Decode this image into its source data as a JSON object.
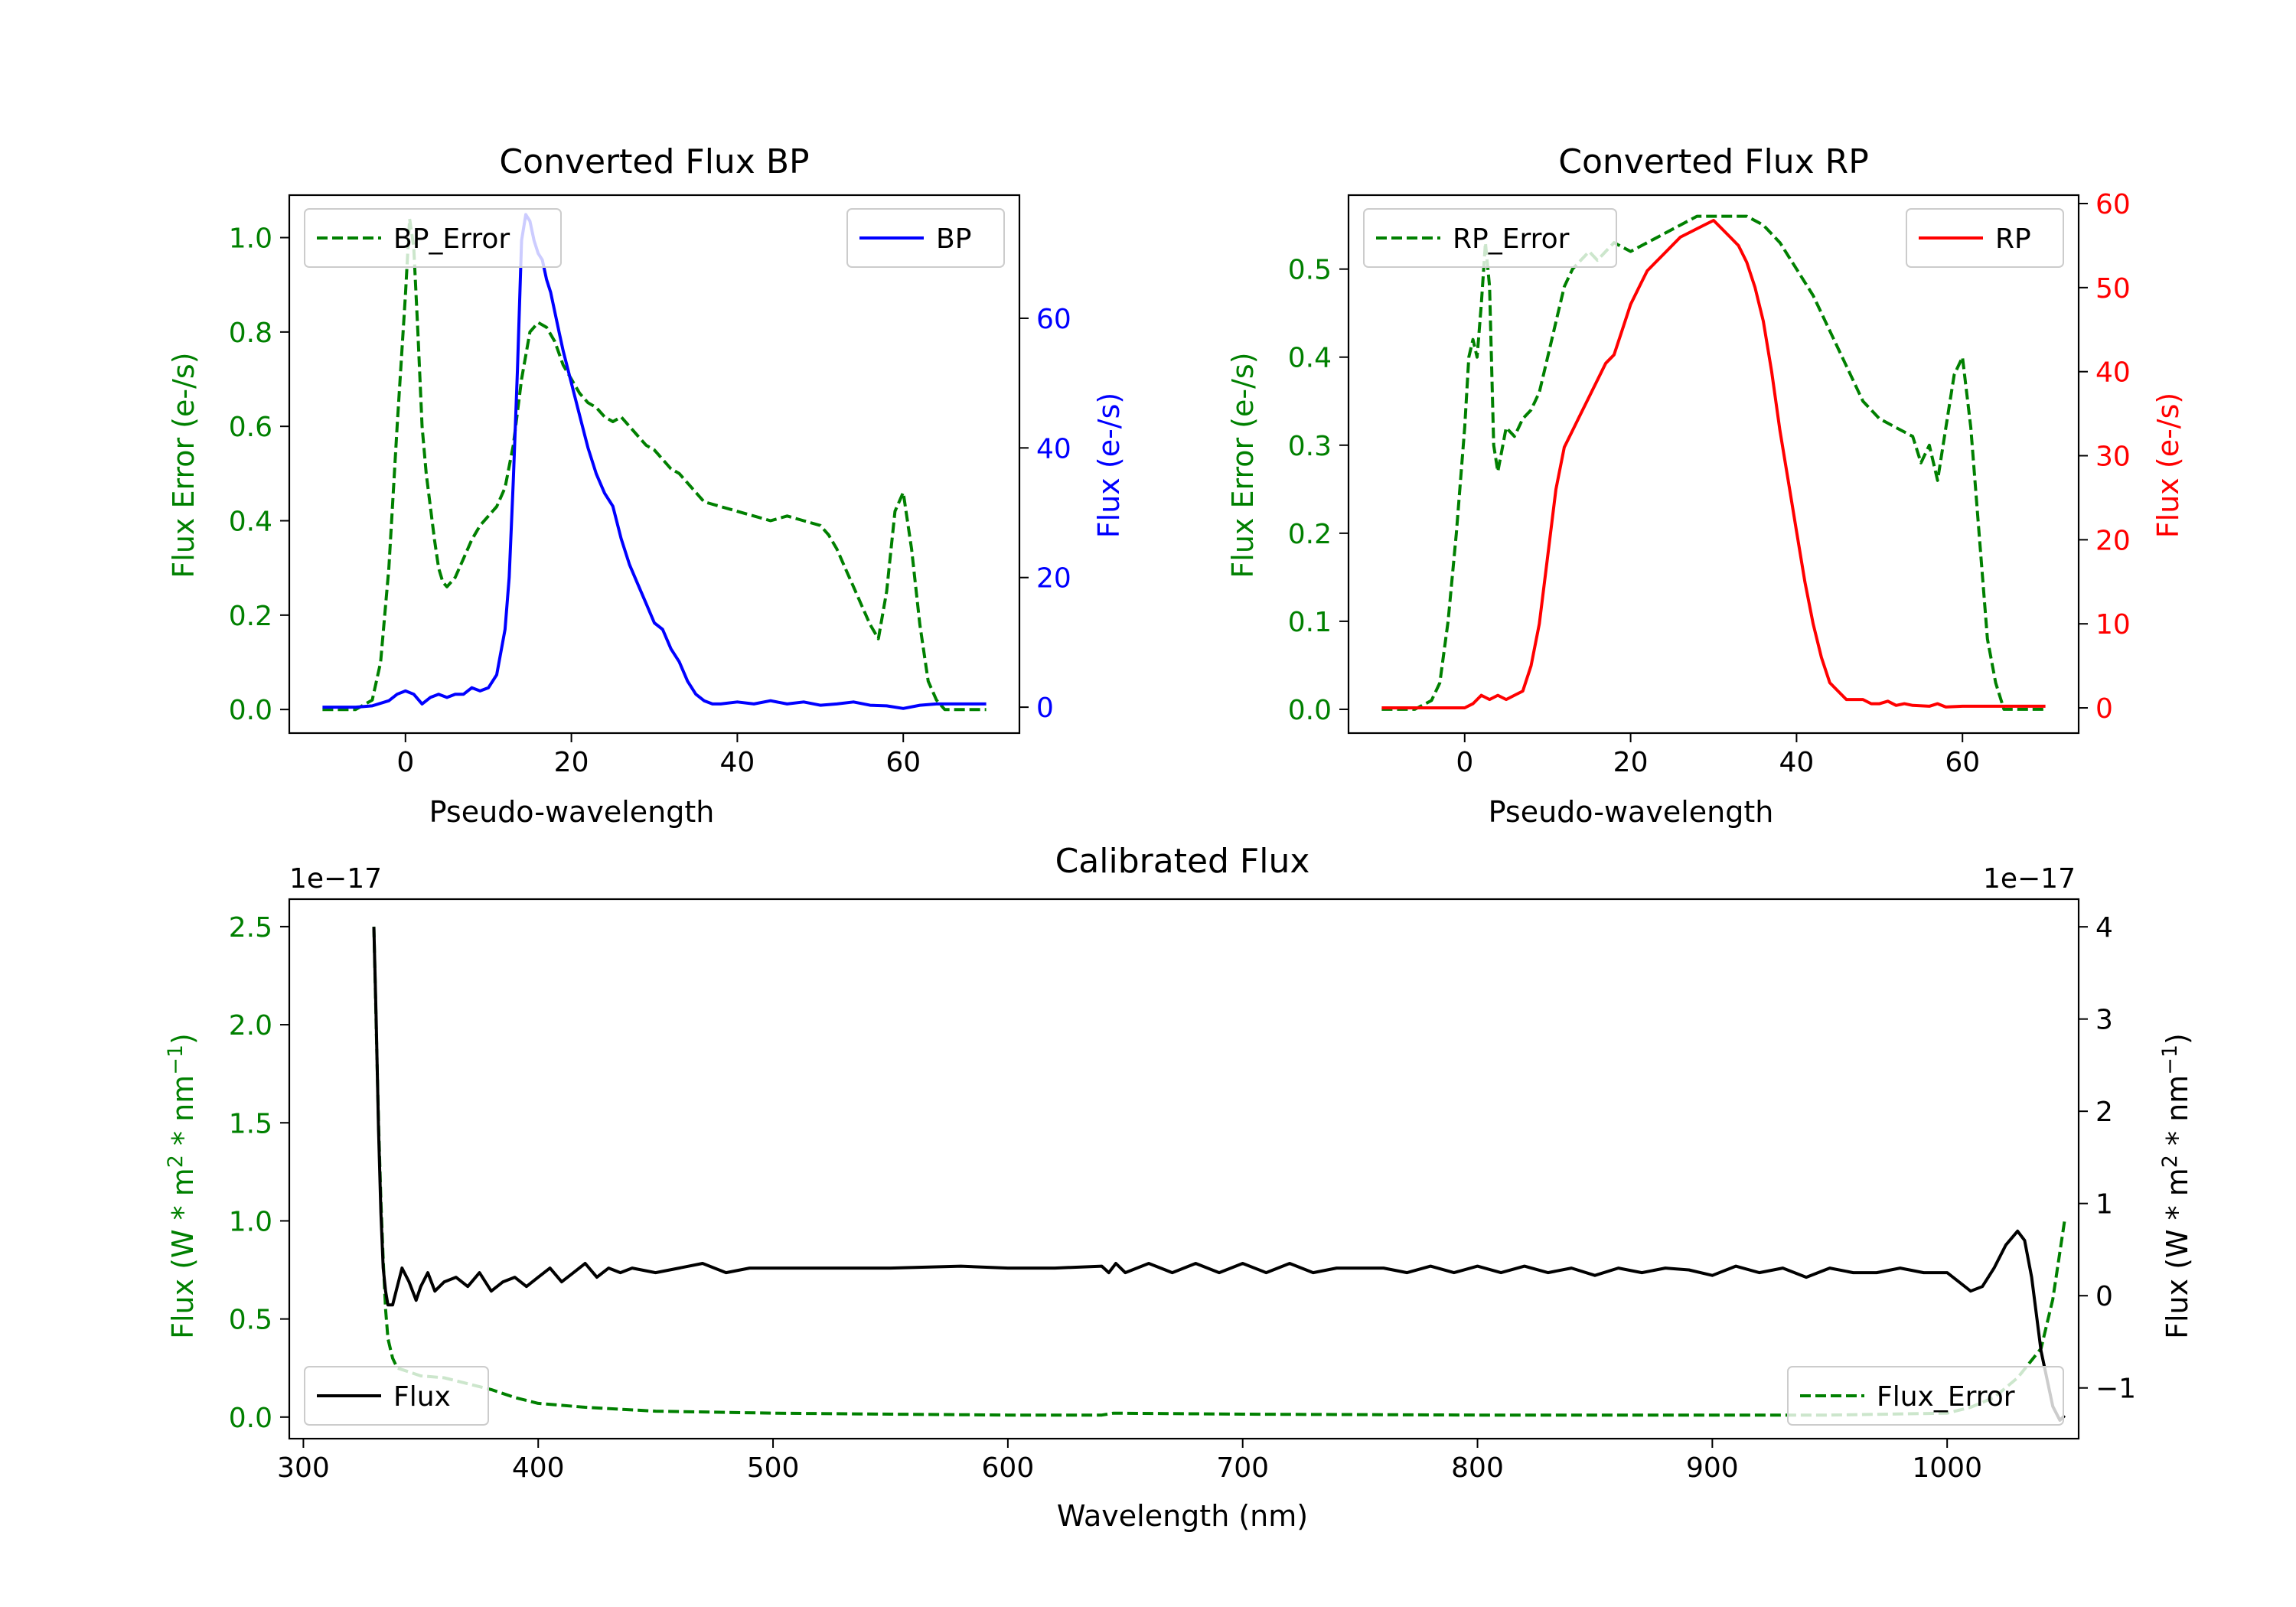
{
  "colors": {
    "error": "#008000",
    "bp": "#0000ff",
    "rp": "#ff0000",
    "flux": "#000000"
  },
  "chart_data": [
    {
      "id": "bp",
      "type": "line",
      "title": "Converted Flux BP",
      "xlabel": "Pseudo-wavelength",
      "ylabel_left": "Flux Error (e-/s)",
      "ylabel_right": "Flux (e-/s)",
      "xlim": [
        -14,
        74
      ],
      "ylim_left": [
        -0.05,
        1.09
      ],
      "ylim_right": [
        -4,
        79
      ],
      "xticks": [
        0,
        20,
        40,
        60
      ],
      "yticks_left": [
        0.0,
        0.2,
        0.4,
        0.6,
        0.8,
        1.0
      ],
      "yticks_right": [
        0,
        20,
        40,
        60
      ],
      "legend_left": {
        "label": "BP_Error",
        "placement": "upper left"
      },
      "legend_right": {
        "label": "BP",
        "placement": "upper right"
      },
      "series": [
        {
          "name": "BP_Error",
          "axis": "left",
          "style": "dashed",
          "color_key": "error",
          "x": [
            -10,
            -6,
            -4,
            -3,
            -2,
            -1,
            0,
            0.5,
            1,
            1.5,
            2,
            2.5,
            3,
            3.5,
            4,
            4.5,
            5,
            5.5,
            6,
            7,
            8,
            9,
            10,
            11,
            12,
            13,
            14,
            15,
            16,
            17,
            18,
            19,
            20,
            21,
            22,
            23,
            24,
            25,
            26,
            27,
            28,
            29,
            30,
            31,
            32,
            33,
            34,
            35,
            36,
            38,
            40,
            42,
            44,
            46,
            48,
            50,
            51,
            52,
            53,
            54,
            55,
            56,
            57,
            58,
            59,
            60,
            61,
            62,
            63,
            64,
            65,
            66,
            68,
            70
          ],
          "y": [
            0.0,
            0.0,
            0.02,
            0.1,
            0.3,
            0.6,
            0.88,
            1.04,
            0.98,
            0.8,
            0.6,
            0.5,
            0.43,
            0.36,
            0.3,
            0.27,
            0.26,
            0.27,
            0.28,
            0.32,
            0.36,
            0.39,
            0.41,
            0.43,
            0.47,
            0.56,
            0.7,
            0.8,
            0.82,
            0.81,
            0.78,
            0.73,
            0.7,
            0.67,
            0.65,
            0.64,
            0.62,
            0.61,
            0.62,
            0.6,
            0.58,
            0.56,
            0.55,
            0.53,
            0.51,
            0.5,
            0.48,
            0.46,
            0.44,
            0.43,
            0.42,
            0.41,
            0.4,
            0.41,
            0.4,
            0.39,
            0.37,
            0.34,
            0.3,
            0.26,
            0.22,
            0.18,
            0.15,
            0.25,
            0.42,
            0.46,
            0.34,
            0.18,
            0.06,
            0.02,
            0.0,
            0.0,
            0.0,
            0.0
          ]
        },
        {
          "name": "BP",
          "axis": "right",
          "style": "solid",
          "color_key": "bp",
          "x": [
            -10,
            -6,
            -4,
            -2,
            -1,
            0,
            1,
            2,
            3,
            4,
            5,
            6,
            7,
            8,
            9,
            10,
            11,
            12,
            12.5,
            13,
            13.5,
            14,
            14.5,
            15,
            15.5,
            16,
            16.5,
            17,
            17.5,
            18,
            18.5,
            19,
            20,
            21,
            22,
            23,
            24,
            25,
            26,
            27,
            28,
            29,
            30,
            31,
            32,
            33,
            34,
            35,
            36,
            37,
            38,
            40,
            42,
            44,
            46,
            48,
            50,
            52,
            54,
            56,
            58,
            60,
            62,
            64,
            66,
            68,
            70
          ],
          "y": [
            0,
            0,
            0.2,
            1,
            2,
            2.5,
            2,
            0.5,
            1.5,
            2,
            1.5,
            2,
            2,
            3,
            2.5,
            3,
            5,
            12,
            20,
            35,
            52,
            72,
            76,
            75,
            72,
            70,
            69,
            66,
            64,
            61,
            58,
            55,
            50,
            45,
            40,
            36,
            33,
            31,
            26,
            22,
            19,
            16,
            13,
            12,
            9,
            7,
            4,
            2,
            1,
            0.5,
            0.5,
            0.8,
            0.5,
            1,
            0.5,
            0.8,
            0.3,
            0.5,
            0.8,
            0.3,
            0.2,
            -0.2,
            0.3,
            0.5,
            0.5,
            0.5,
            0.5
          ]
        }
      ]
    },
    {
      "id": "rp",
      "type": "line",
      "title": "Converted Flux RP",
      "xlabel": "Pseudo-wavelength",
      "ylabel_left": "Flux Error (e-/s)",
      "ylabel_right": "Flux (e-/s)",
      "xlim": [
        -14,
        74
      ],
      "ylim_left": [
        -0.027,
        0.584
      ],
      "ylim_right": [
        -3,
        61
      ],
      "xticks": [
        0,
        20,
        40,
        60
      ],
      "yticks_left": [
        0.0,
        0.1,
        0.2,
        0.3,
        0.4,
        0.5
      ],
      "yticks_right": [
        0,
        10,
        20,
        30,
        40,
        50,
        60
      ],
      "legend_left": {
        "label": "RP_Error",
        "placement": "upper left"
      },
      "legend_right": {
        "label": "RP",
        "placement": "upper right"
      },
      "series": [
        {
          "name": "RP_Error",
          "axis": "left",
          "style": "dashed",
          "color_key": "error",
          "x": [
            -10,
            -6,
            -4,
            -3,
            -2,
            -1,
            0,
            0.5,
            1,
            1.5,
            2,
            2.5,
            3,
            3.5,
            4,
            5,
            6,
            7,
            8,
            9,
            10,
            11,
            12,
            13,
            14,
            15,
            16,
            18,
            20,
            22,
            24,
            26,
            28,
            30,
            32,
            34,
            36,
            38,
            40,
            42,
            44,
            46,
            48,
            50,
            52,
            54,
            55,
            56,
            57,
            58,
            59,
            60,
            61,
            62,
            63,
            64,
            65,
            66,
            68,
            70
          ],
          "y": [
            0.0,
            0.0,
            0.01,
            0.03,
            0.1,
            0.2,
            0.32,
            0.4,
            0.42,
            0.4,
            0.46,
            0.53,
            0.48,
            0.3,
            0.27,
            0.32,
            0.31,
            0.33,
            0.34,
            0.36,
            0.4,
            0.44,
            0.48,
            0.5,
            0.51,
            0.52,
            0.51,
            0.53,
            0.52,
            0.53,
            0.54,
            0.55,
            0.56,
            0.56,
            0.56,
            0.56,
            0.55,
            0.53,
            0.5,
            0.47,
            0.43,
            0.39,
            0.35,
            0.33,
            0.32,
            0.31,
            0.28,
            0.3,
            0.26,
            0.32,
            0.38,
            0.4,
            0.32,
            0.2,
            0.08,
            0.03,
            0.0,
            0.0,
            0.0,
            0.0
          ]
        },
        {
          "name": "RP",
          "axis": "right",
          "style": "solid",
          "color_key": "rp",
          "x": [
            -10,
            -6,
            -4,
            -2,
            0,
            1,
            2,
            3,
            4,
            5,
            6,
            7,
            8,
            9,
            10,
            11,
            12,
            13,
            14,
            15,
            16,
            17,
            18,
            19,
            20,
            21,
            22,
            23,
            24,
            25,
            26,
            27,
            28,
            29,
            30,
            31,
            32,
            33,
            34,
            35,
            36,
            37,
            38,
            39,
            40,
            41,
            42,
            43,
            44,
            45,
            46,
            47,
            48,
            49,
            50,
            51,
            52,
            53,
            54,
            56,
            57,
            58,
            60,
            64,
            70
          ],
          "y": [
            0,
            0,
            0,
            0,
            0,
            0.5,
            1.5,
            1,
            1.5,
            1,
            1.5,
            2,
            5,
            10,
            18,
            26,
            31,
            33,
            35,
            37,
            39,
            41,
            42,
            45,
            48,
            50,
            52,
            53,
            54,
            55,
            56,
            56.5,
            57,
            57.5,
            58,
            57,
            56,
            55,
            53,
            50,
            46,
            40,
            33,
            27,
            21,
            15,
            10,
            6,
            3,
            2,
            1,
            1,
            1,
            0.5,
            0.5,
            0.8,
            0.3,
            0.5,
            0.3,
            0.2,
            0.5,
            0.1,
            0.2,
            0.2,
            0.2
          ]
        }
      ]
    },
    {
      "id": "cal",
      "type": "line",
      "title": "Calibrated Flux",
      "xlabel": "Wavelength (nm)",
      "ylabel_left": "Flux (W * m",
      "ylabel_right": "Flux (W * m",
      "ylabel_sup1": "2",
      "ylabel_mid": " * nm",
      "ylabel_sup2": "−1",
      "ylabel_end": ")",
      "offset_left": "1e−17",
      "offset_right": "1e−17",
      "xlim": [
        294,
        1056
      ],
      "ylim_left": [
        -0.11,
        2.64
      ],
      "ylim_right": [
        -1.55,
        4.3
      ],
      "xticks": [
        300,
        400,
        500,
        600,
        700,
        800,
        900,
        1000
      ],
      "yticks_left": [
        0.0,
        0.5,
        1.0,
        1.5,
        2.0,
        2.5
      ],
      "yticks_left_labels": [
        "0.0",
        "0.5",
        "1.0",
        "1.5",
        "2.0",
        "2.5"
      ],
      "yticks_right": [
        -1,
        0,
        1,
        2,
        3,
        4
      ],
      "yticks_right_labels": [
        "−1",
        "0",
        "1",
        "2",
        "3",
        "4"
      ],
      "legend_left": {
        "label": "Flux",
        "placement": "lower left"
      },
      "legend_right": {
        "label": "Flux_Error",
        "placement": "lower right"
      },
      "series": [
        {
          "name": "Flux_Error",
          "axis": "left",
          "style": "dashed",
          "color_key": "error",
          "x": [
            330,
            331,
            332,
            333,
            334,
            335,
            336,
            338,
            340,
            345,
            350,
            360,
            370,
            380,
            390,
            400,
            420,
            450,
            500,
            550,
            600,
            640,
            645,
            700,
            800,
            900,
            950,
            1000,
            1010,
            1020,
            1030,
            1040,
            1045,
            1050
          ],
          "y": [
            2.5,
            2.0,
            1.5,
            1.1,
            0.8,
            0.55,
            0.4,
            0.3,
            0.25,
            0.23,
            0.21,
            0.2,
            0.17,
            0.14,
            0.1,
            0.07,
            0.05,
            0.03,
            0.02,
            0.015,
            0.01,
            0.01,
            0.02,
            0.015,
            0.01,
            0.01,
            0.01,
            0.02,
            0.05,
            0.1,
            0.2,
            0.35,
            0.6,
            1.0
          ]
        },
        {
          "name": "Flux",
          "axis": "right",
          "style": "solid",
          "color_key": "flux",
          "x": [
            330,
            331,
            332,
            333,
            334,
            335,
            336,
            338,
            340,
            342,
            345,
            348,
            350,
            353,
            356,
            360,
            365,
            370,
            375,
            380,
            385,
            390,
            395,
            400,
            405,
            410,
            415,
            420,
            425,
            430,
            435,
            440,
            450,
            460,
            470,
            480,
            490,
            500,
            520,
            550,
            580,
            600,
            620,
            640,
            643,
            646,
            650,
            660,
            670,
            680,
            690,
            700,
            710,
            720,
            730,
            740,
            750,
            760,
            770,
            780,
            790,
            800,
            810,
            820,
            830,
            840,
            850,
            860,
            870,
            880,
            890,
            900,
            910,
            920,
            930,
            940,
            950,
            960,
            970,
            980,
            990,
            1000,
            1005,
            1010,
            1015,
            1020,
            1025,
            1030,
            1033,
            1036,
            1040,
            1045,
            1048,
            1050
          ],
          "y": [
            4.0,
            3.0,
            1.8,
            0.9,
            0.3,
            0.05,
            -0.1,
            -0.1,
            0.1,
            0.3,
            0.15,
            -0.05,
            0.1,
            0.25,
            0.05,
            0.15,
            0.2,
            0.1,
            0.25,
            0.05,
            0.15,
            0.2,
            0.1,
            0.2,
            0.3,
            0.15,
            0.25,
            0.35,
            0.2,
            0.3,
            0.25,
            0.3,
            0.25,
            0.3,
            0.35,
            0.25,
            0.3,
            0.3,
            0.3,
            0.3,
            0.32,
            0.3,
            0.3,
            0.32,
            0.25,
            0.35,
            0.25,
            0.35,
            0.25,
            0.35,
            0.25,
            0.35,
            0.25,
            0.35,
            0.25,
            0.3,
            0.3,
            0.3,
            0.25,
            0.32,
            0.25,
            0.32,
            0.25,
            0.32,
            0.25,
            0.3,
            0.22,
            0.3,
            0.25,
            0.3,
            0.28,
            0.22,
            0.32,
            0.25,
            0.3,
            0.2,
            0.3,
            0.25,
            0.25,
            0.3,
            0.25,
            0.25,
            0.15,
            0.05,
            0.1,
            0.3,
            0.55,
            0.7,
            0.6,
            0.2,
            -0.6,
            -1.2,
            -1.35,
            -1.3
          ]
        }
      ]
    }
  ]
}
